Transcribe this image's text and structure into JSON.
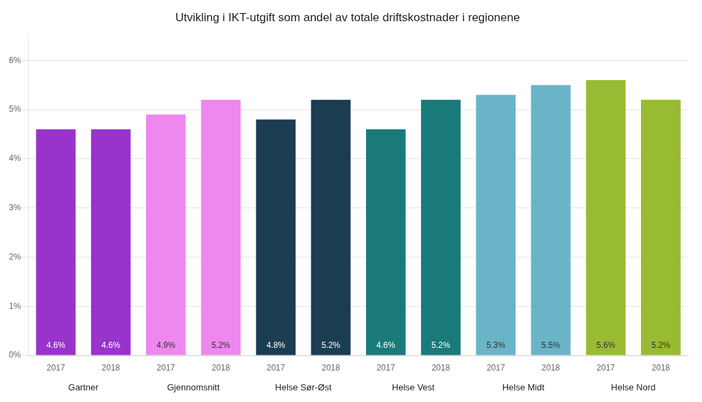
{
  "chart_data": {
    "type": "bar",
    "title": "Utvikling i IKT-utgift som andel av totale driftskostnader i regionene",
    "categories": [
      "2017",
      "2018",
      "2017",
      "2018",
      "2017",
      "2018",
      "2017",
      "2018",
      "2017",
      "2018",
      "2017",
      "2018"
    ],
    "groups": [
      "Gartner",
      "Gjennomsnitt",
      "Helse Sør-Øst",
      "Helse Vest",
      "Helse Midt",
      "Helse Nord"
    ],
    "values": [
      0.046,
      0.046,
      0.049,
      0.052,
      0.048,
      0.052,
      0.046,
      0.052,
      0.053,
      0.055,
      0.056,
      0.052
    ],
    "value_labels": [
      "4.6%",
      "4.6%",
      "4.9%",
      "5.2%",
      "4.8%",
      "5.2%",
      "4.6%",
      "5.2%",
      "5.3%",
      "5.5%",
      "5.6%",
      "5.2%"
    ],
    "colors": [
      "#9933cc",
      "#9933cc",
      "#ee88ee",
      "#ee88ee",
      "#1b3d52",
      "#1b3d52",
      "#1a7a7a",
      "#1a7a7a",
      "#6ab4c8",
      "#6ab4c8",
      "#99bb33",
      "#99bb33"
    ],
    "ylim": [
      0,
      0.065
    ],
    "yticks": [
      {
        "value": 0,
        "label": "0%"
      },
      {
        "value": 0.01,
        "label": "1%"
      },
      {
        "value": 0.02,
        "label": "2%"
      },
      {
        "value": 0.03,
        "label": "3%"
      },
      {
        "value": 0.04,
        "label": "4%"
      },
      {
        "value": 0.05,
        "label": "5%"
      },
      {
        "value": 0.06,
        "label": "6%"
      }
    ],
    "grid": true,
    "data_labels": true
  }
}
